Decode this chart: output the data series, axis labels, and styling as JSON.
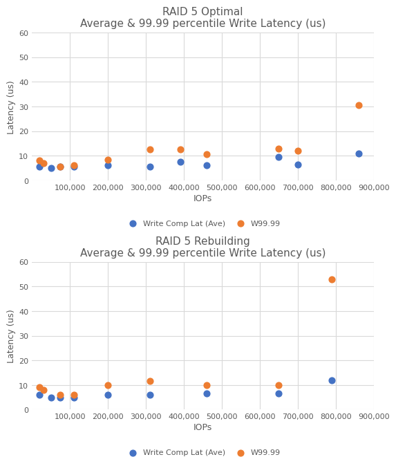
{
  "chart1": {
    "title_line1": "RAID 5 Optimal",
    "title_line2": "Average & 99.99 percentile Write Latency (us)",
    "xlabel": "IOPs",
    "ylabel": "Latency (us)",
    "ylim": [
      0,
      60
    ],
    "yticks": [
      0,
      10,
      20,
      30,
      40,
      50,
      60
    ],
    "xlim": [
      0,
      900000
    ],
    "xticks": [
      100000,
      200000,
      300000,
      400000,
      500000,
      600000,
      700000,
      800000,
      900000
    ],
    "blue_x": [
      20000,
      50000,
      75000,
      110000,
      200000,
      310000,
      390000,
      460000,
      650000,
      700000,
      860000
    ],
    "blue_y": [
      5.5,
      5.0,
      5.5,
      5.5,
      6.0,
      5.5,
      7.5,
      6.0,
      9.5,
      6.5,
      11.0
    ],
    "orange_x": [
      20000,
      30000,
      75000,
      110000,
      200000,
      310000,
      390000,
      460000,
      650000,
      700000,
      860000
    ],
    "orange_y": [
      8.0,
      7.0,
      5.5,
      6.0,
      8.5,
      12.5,
      12.5,
      10.5,
      13.0,
      12.0,
      30.5
    ]
  },
  "chart2": {
    "title_line1": "RAID 5 Rebuilding",
    "title_line2": "Average & 99.99 percentile Write Latency (us)",
    "xlabel": "IOPs",
    "ylabel": "Latency (us)",
    "ylim": [
      0,
      60
    ],
    "yticks": [
      0,
      10,
      20,
      30,
      40,
      50,
      60
    ],
    "xlim": [
      0,
      900000
    ],
    "xticks": [
      100000,
      200000,
      300000,
      400000,
      500000,
      600000,
      700000,
      800000,
      900000
    ],
    "blue_x": [
      20000,
      50000,
      75000,
      110000,
      200000,
      310000,
      460000,
      650000,
      790000
    ],
    "blue_y": [
      6.0,
      5.0,
      5.0,
      5.0,
      6.0,
      6.0,
      6.5,
      6.5,
      12.0
    ],
    "orange_x": [
      20000,
      30000,
      75000,
      110000,
      200000,
      310000,
      460000,
      650000,
      790000
    ],
    "orange_y": [
      9.0,
      8.0,
      6.0,
      6.0,
      10.0,
      11.5,
      10.0,
      10.0,
      53.0
    ]
  },
  "blue_color": "#4472C4",
  "orange_color": "#ED7D31",
  "title_color": "#595959",
  "axis_label_color": "#595959",
  "tick_color": "#595959",
  "legend_label1": "Write Comp Lat (Ave)",
  "legend_label2": "W99.99",
  "background_color": "#FFFFFF",
  "grid_color": "#D9D9D9",
  "marker_size": 40,
  "title_fontsize": 11,
  "axis_label_fontsize": 9,
  "tick_fontsize": 8,
  "legend_fontsize": 8
}
